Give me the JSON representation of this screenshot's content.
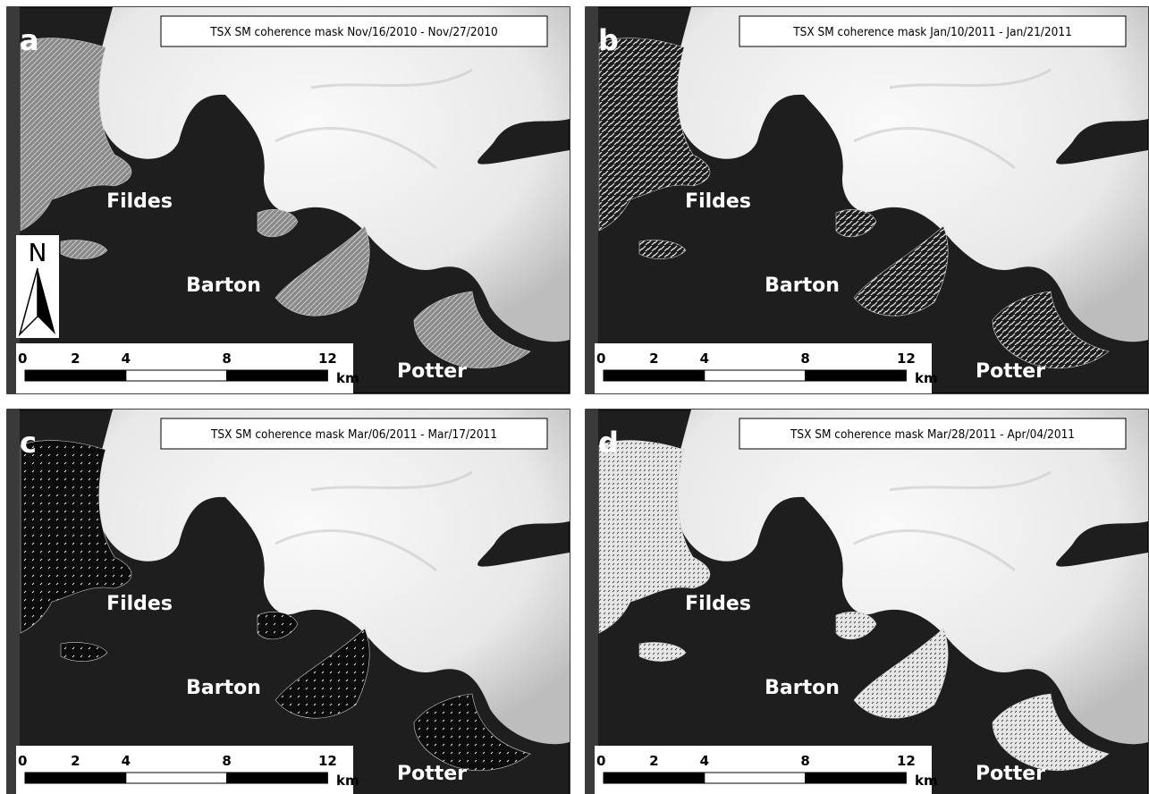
{
  "panels": [
    {
      "letter": "a",
      "title": "TSX SM coherence mask Nov/16/2010 - Nov/27/2010",
      "places": [
        "Fildes",
        "Barton",
        "Potter"
      ]
    },
    {
      "letter": "b",
      "title": "TSX SM coherence mask Jan/10/2011 - Jan/21/2011",
      "places": [
        "Fildes",
        "Barton",
        "Potter"
      ]
    },
    {
      "letter": "c",
      "title": "TSX SM coherence mask Mar/06/2011 - Mar/17/2011",
      "places": [
        "Fildes",
        "Barton",
        "Potter"
      ]
    },
    {
      "letter": "d",
      "title": "TSX SM coherence mask Mar/28/2011 - Apr/04/2011",
      "places": [
        "Fildes",
        "Barton",
        "Potter"
      ]
    }
  ],
  "north": "N",
  "scale": {
    "ticks": [
      0,
      2,
      4,
      8,
      12
    ],
    "unit": "km"
  }
}
